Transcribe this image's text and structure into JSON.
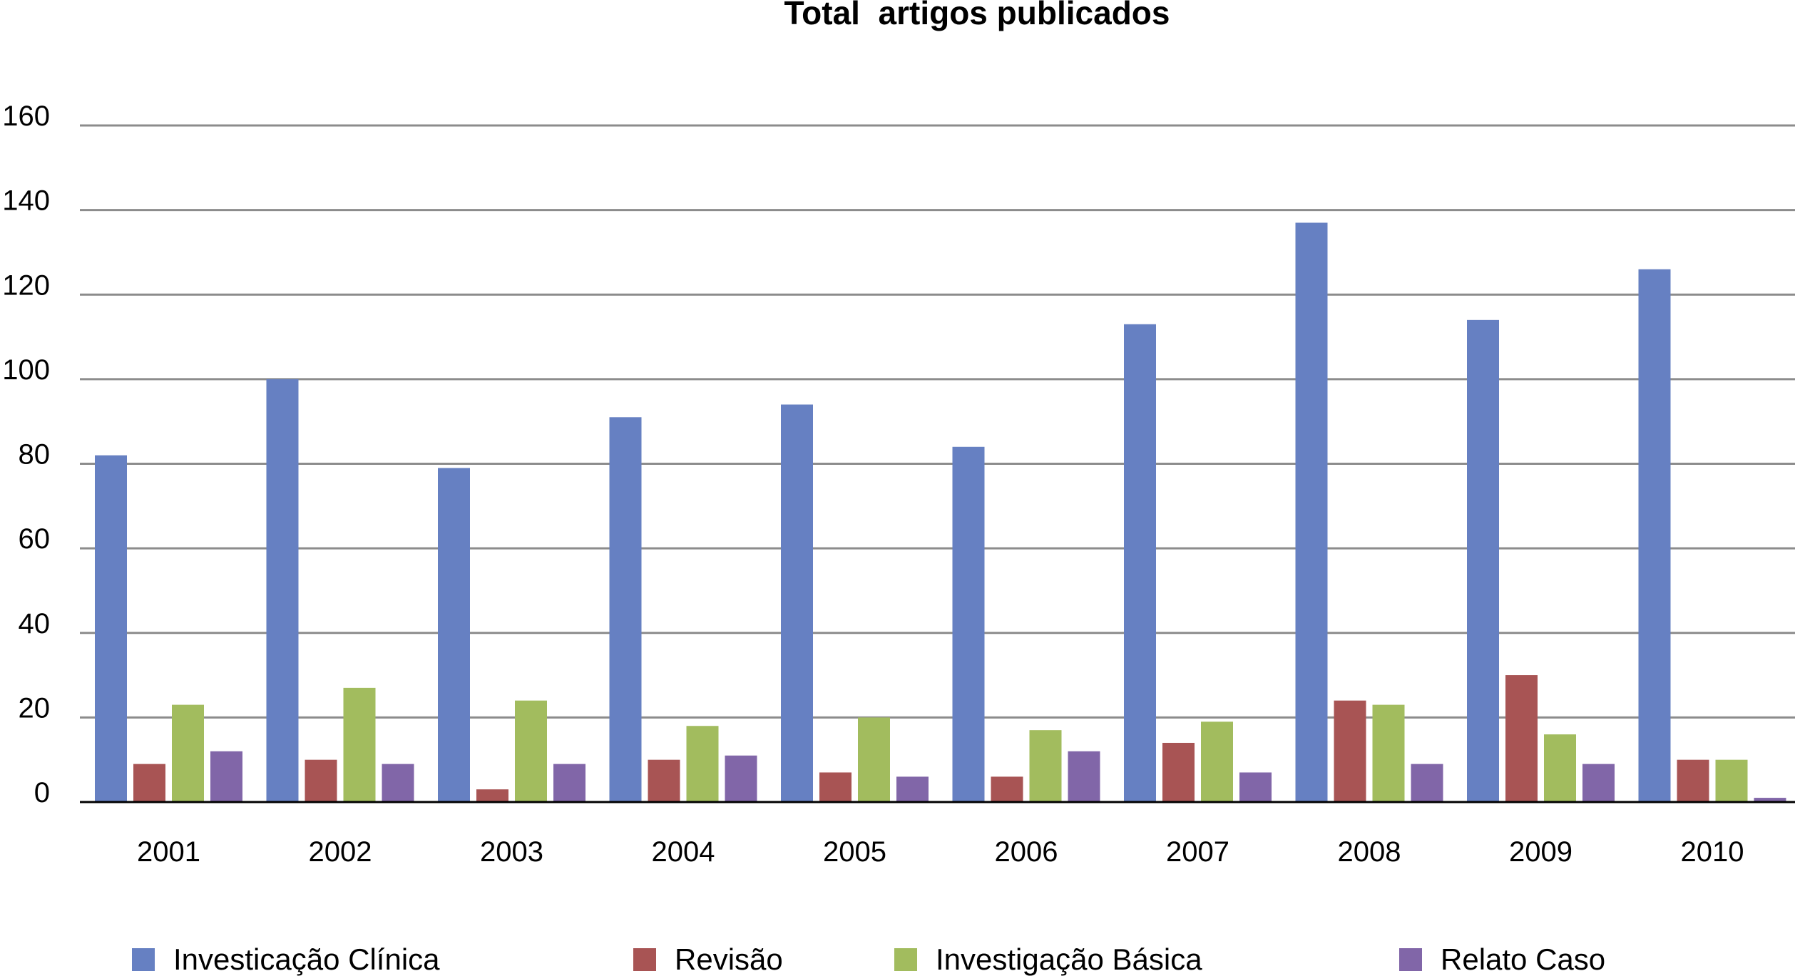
{
  "chart_data": {
    "type": "bar",
    "title": "Total  artigos publicados",
    "xlabel": "",
    "ylabel": "",
    "ylim": [
      0,
      160
    ],
    "yticks": [
      0,
      20,
      40,
      60,
      80,
      100,
      120,
      140,
      160
    ],
    "grid": true,
    "legend_position": "bottom",
    "categories": [
      "2001",
      "2002",
      "2003",
      "2004",
      "2005",
      "2006",
      "2007",
      "2008",
      "2009",
      "2010"
    ],
    "series": [
      {
        "name": "Investicação Clínica",
        "color": "#6680c2",
        "values": [
          82,
          100,
          79,
          91,
          94,
          84,
          113,
          137,
          114,
          126
        ]
      },
      {
        "name": "Revisão",
        "color": "#a85454",
        "values": [
          9,
          10,
          3,
          10,
          7,
          6,
          14,
          24,
          30,
          10
        ]
      },
      {
        "name": "Investigação Básica",
        "color": "#a2bc5e",
        "values": [
          23,
          27,
          24,
          18,
          20,
          17,
          19,
          23,
          16,
          10
        ]
      },
      {
        "name": "Relato Caso",
        "color": "#8166a8",
        "values": [
          12,
          9,
          9,
          11,
          6,
          12,
          7,
          9,
          9,
          1
        ]
      }
    ]
  }
}
